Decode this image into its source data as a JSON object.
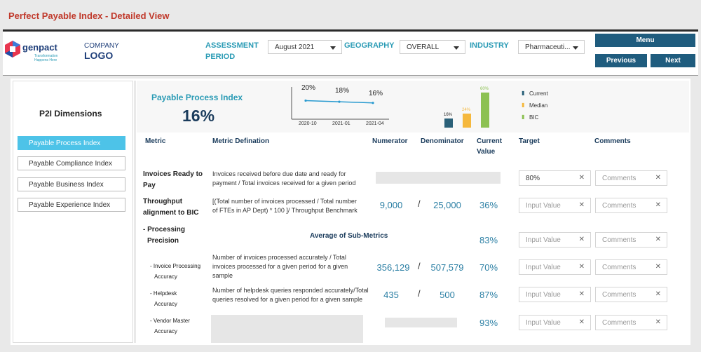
{
  "title": "Perfect Payable Index - Detailed View",
  "header": {
    "logo_brand": "genpact",
    "logo_tagline": "Transformation Happens Here",
    "company_logo_top": "COMPANY",
    "company_logo_bottom": "LOGO",
    "assessment_label_1": "ASSESSMENT",
    "assessment_label_2": "PERIOD",
    "assessment_value": "August 2021",
    "geography_label": "GEOGRAPHY",
    "geography_value": "OVERALL",
    "industry_label": "INDUSTRY",
    "industry_value": "Pharmaceuti...",
    "menu_label": "Menu",
    "previous_label": "Previous",
    "next_label": "Next"
  },
  "sidebar": {
    "title": "P2I Dimensions",
    "items": [
      {
        "label": "Payable Process Index"
      },
      {
        "label": "Payable Compliance Index"
      },
      {
        "label": "Payable Business Index"
      },
      {
        "label": "Payable Experience Index"
      }
    ]
  },
  "summary": {
    "index_title": "Payable Process Index",
    "index_value": "16%"
  },
  "chart_data": [
    {
      "type": "line",
      "x": [
        "2020-10",
        "2021-01",
        "2021-04"
      ],
      "values": [
        20,
        18,
        16
      ],
      "data_labels": [
        "20%",
        "18%",
        "16%"
      ],
      "color": "#2a9bd0"
    },
    {
      "type": "bar",
      "series": [
        {
          "name": "Current",
          "value": 16,
          "label": "16%",
          "color": "#2a6078"
        },
        {
          "name": "Median",
          "value": 24,
          "label": "24%",
          "color": "#f5b83d"
        },
        {
          "name": "BIC",
          "value": 60,
          "label": "60%",
          "color": "#8cc152"
        }
      ],
      "legend_placement": "right"
    }
  ],
  "table": {
    "headers": {
      "metric": "Metric",
      "definition": "Metric Defination",
      "numerator": "Numerator",
      "denominator": "Denominator",
      "current_1": "Current",
      "current_2": "Value",
      "target": "Target",
      "comments": "Comments"
    },
    "average_label": "Average of Sub-Metrics",
    "target_placeholder": "Input Value",
    "comments_placeholder": "Comments",
    "rows": [
      {
        "metric_1": "Invoices Ready to",
        "metric_2": "Pay",
        "def_1": "Invoices received before due date and ready for",
        "def_2": "payment / Total invoices received for a given period",
        "current": "",
        "target": "80%"
      },
      {
        "metric_1": "Throughput",
        "metric_2": "alignment to BIC",
        "def_1": "[(Total number of invoices processed / Total number",
        "def_2": "of FTEs in AP Dept) * 100 ]/ Throughput Benchmark",
        "numerator": "9,000",
        "denominator": "25,000",
        "current": "36%"
      },
      {
        "metric_1": "- Processing",
        "metric_2": "Precision",
        "current": "83%"
      },
      {
        "metric_1": "- Invoice Processing",
        "metric_2": "Accuracy",
        "def_1": "Number of invoices processed accurately / Total",
        "def_2": "invoices processed for a given period for a given",
        "def_3": "sample",
        "numerator": "356,129",
        "denominator": "507,579",
        "current": "70%"
      },
      {
        "metric_1": "- Helpdesk",
        "metric_2": "Accuracy",
        "def_1": "Number of helpdesk queries responded accurately/Total",
        "def_2": "queries resolved for a given period for a given sample",
        "numerator": "435",
        "denominator": "500",
        "current": "87%"
      },
      {
        "metric_1": "- Vendor Master",
        "metric_2": "Accuracy",
        "current": "93%"
      }
    ]
  }
}
